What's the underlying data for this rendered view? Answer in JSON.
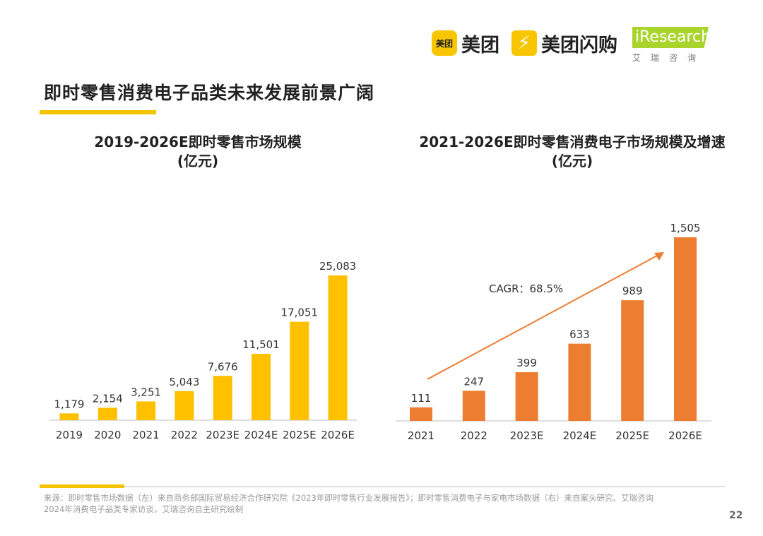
{
  "header": {
    "title": "即时零售消费电子品类未来发展前景广阔",
    "logos": {
      "meituan_icon": "美团",
      "meituan": "美团",
      "shangou": "美团闪购",
      "iresearch": "iResearch",
      "iresearch_cn": "艾瑞咨询"
    }
  },
  "colors": {
    "accent_yellow": "#f5c400",
    "left_bars": "#ffc000",
    "right_bars": "#ed7d31",
    "arrow": "#ed7d31"
  },
  "chart_data": [
    {
      "type": "bar",
      "title": "2019-2026E即时零售市场规模",
      "subtitle": "(亿元)",
      "categories": [
        "2019",
        "2020",
        "2021",
        "2022",
        "2023E",
        "2024E",
        "2025E",
        "2026E"
      ],
      "values": [
        1179,
        2154,
        3251,
        5043,
        7676,
        11501,
        17051,
        25083
      ],
      "labels": [
        "1,179",
        "2,154",
        "3,251",
        "5,043",
        "7,676",
        "11,501",
        "17,051",
        "25,083"
      ],
      "grid": false
    },
    {
      "type": "bar",
      "title": "2021-2026E即时零售消费电子市场规模及增速",
      "subtitle": "(亿元)",
      "categories": [
        "2021",
        "2022",
        "2023E",
        "2024E",
        "2025E",
        "2026E"
      ],
      "values": [
        111,
        247,
        399,
        633,
        989,
        1505
      ],
      "labels": [
        "111",
        "247",
        "399",
        "633",
        "989",
        "1,505"
      ],
      "annotation": "CAGR：68.5%",
      "grid": false
    }
  ],
  "footer": {
    "source_line1": "来源：即时零售市场数据（左）来自商务部国际贸易经济合作研究院《2023年即时零售行业发展报告》；即时零售消费电子与家电市场数据（右）来自案头研究、艾瑞咨询",
    "source_line2": "2024年消费电子品类专家访谈，艾瑞咨询自主研究绘制",
    "page_number": "22"
  }
}
